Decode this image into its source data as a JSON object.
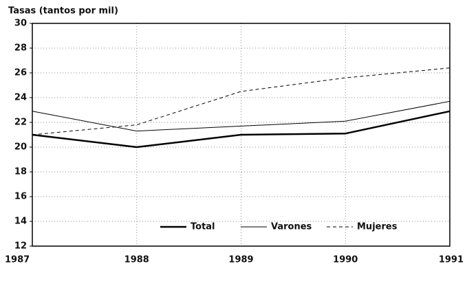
{
  "chart_data": {
    "type": "line",
    "y_label": "Tasas (tantos por mil)",
    "x": [
      1987,
      1988,
      1989,
      1990,
      1991
    ],
    "xlim": [
      1987,
      1991
    ],
    "xticks": [
      1987,
      1988,
      1989,
      1990,
      1991
    ],
    "ylim": [
      12,
      30
    ],
    "yticks": [
      12,
      14,
      16,
      18,
      20,
      22,
      24,
      26,
      28,
      30
    ],
    "grid": true,
    "legend": "bottom",
    "series": [
      {
        "name": "Total",
        "color": "#000000",
        "style": "bold",
        "values": [
          21.0,
          20.0,
          21.0,
          21.1,
          22.9
        ]
      },
      {
        "name": "Varones",
        "color": "#000000",
        "style": "solid",
        "values": [
          22.9,
          21.3,
          21.7,
          22.1,
          23.7
        ]
      },
      {
        "name": "Mujeres",
        "color": "#000000",
        "style": "dashed",
        "values": [
          21.0,
          21.8,
          24.5,
          25.6,
          26.4
        ]
      }
    ]
  }
}
